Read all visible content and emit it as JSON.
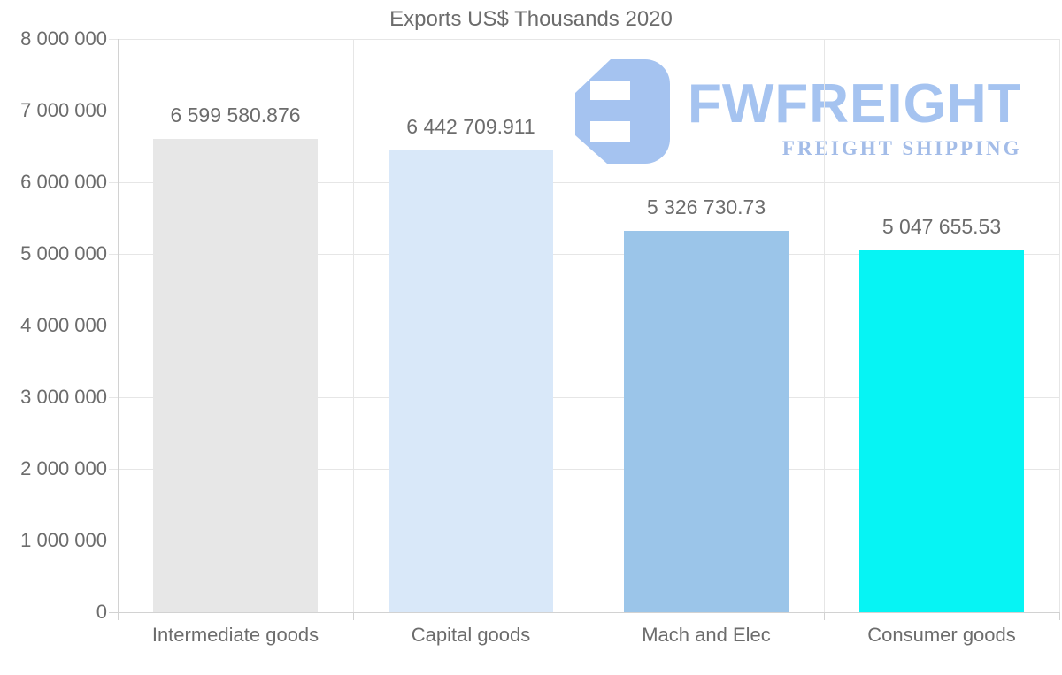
{
  "chart_data": {
    "type": "bar",
    "title": "Exports US$ Thousands 2020",
    "categories": [
      "Intermediate goods",
      "Capital goods",
      "Mach and Elec",
      "Consumer goods"
    ],
    "values": [
      6599580.876,
      6442709.911,
      5326730.73,
      5047655.53
    ],
    "value_labels": [
      "6 599 580.876",
      "6 442 709.911",
      "5 326 730.73",
      "5 047 655.53"
    ],
    "bar_colors": [
      "#e7e7e7",
      "#d9e8f9",
      "#9bc5e9",
      "#06f4f4"
    ],
    "ylim": [
      0,
      8000000
    ],
    "ytick_interval": 1000000,
    "ytick_labels": [
      "0",
      "1 000 000",
      "2 000 000",
      "3 000 000",
      "4 000 000",
      "5 000 000",
      "6 000 000",
      "7 000 000",
      "8 000 000"
    ],
    "xlabel": "",
    "ylabel": "",
    "grid": "horizontal gridlines each 1 000 000; vertical gridlines at category boundaries",
    "legend_position": "none"
  },
  "watermark": {
    "brand": "FWFREIGHT",
    "tagline": "FREIGHT SHIPPING",
    "brand_color": "#a5c3f0",
    "tagline_color": "#a3bce8"
  },
  "colors": {
    "text": "#6c6c6c",
    "grid": "#e6e6e6",
    "axis": "#d2d2d2",
    "background": "#ffffff"
  }
}
